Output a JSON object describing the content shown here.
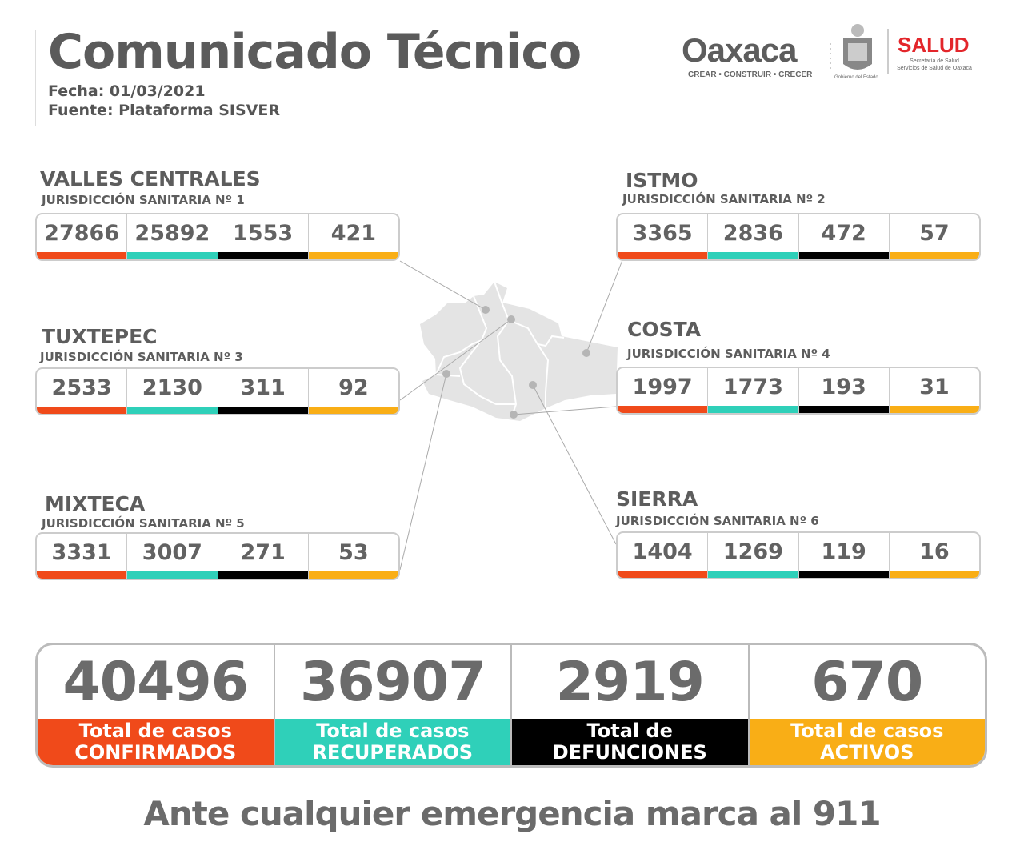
{
  "header": {
    "title": "Comunicado Técnico",
    "fecha": "Fecha: 01/03/2021",
    "fuente": "Fuente: Plataforma SISVER"
  },
  "logos": {
    "oaxaca": "Oaxaca",
    "oaxaca_tagline": "CREAR • CONSTRUIR • CRECER",
    "gobierno": "Gobierno del Estado",
    "salud": "SALUD",
    "salud_sub1": "Secretaría de Salud",
    "salud_sub2": "Servicios de Salud de Oaxaca"
  },
  "colors": {
    "confirmados": "#f04a1a",
    "recuperados": "#2fd0b9",
    "defunciones": "#000000",
    "activos": "#f9ae16"
  },
  "regions": [
    {
      "name": "VALLES CENTRALES",
      "sub": "JURISDICCIÓN SANITARIA Nº 1",
      "values": [
        "27866",
        "25892",
        "1553",
        "421"
      ]
    },
    {
      "name": "ISTMO",
      "sub": "JURISDICCIÓN SANITARIA Nº 2",
      "values": [
        "3365",
        "2836",
        "472",
        "57"
      ]
    },
    {
      "name": "TUXTEPEC",
      "sub": "JURISDICCIÓN SANITARIA Nº 3",
      "values": [
        "2533",
        "2130",
        "311",
        "92"
      ]
    },
    {
      "name": "COSTA",
      "sub": "JURISDICCIÓN SANITARIA Nº 4",
      "values": [
        "1997",
        "1773",
        "193",
        "31"
      ]
    },
    {
      "name": "MIXTECA",
      "sub": "JURISDICCIÓN SANITARIA Nº 5",
      "values": [
        "3331",
        "3007",
        "271",
        "53"
      ]
    },
    {
      "name": "SIERRA",
      "sub": "JURISDICCIÓN SANITARIA Nº 6",
      "values": [
        "1404",
        "1269",
        "119",
        "16"
      ]
    }
  ],
  "totals": [
    {
      "value": "40496",
      "line1": "Total de casos",
      "line2": "CONFIRMADOS"
    },
    {
      "value": "36907",
      "line1": "Total de casos",
      "line2": "RECUPERADOS"
    },
    {
      "value": "2919",
      "line1": "Total de",
      "line2": "DEFUNCIONES"
    },
    {
      "value": "670",
      "line1": "Total de casos",
      "line2": "ACTIVOS"
    }
  ],
  "footer": "Ante cualquier emergencia marca al 911"
}
